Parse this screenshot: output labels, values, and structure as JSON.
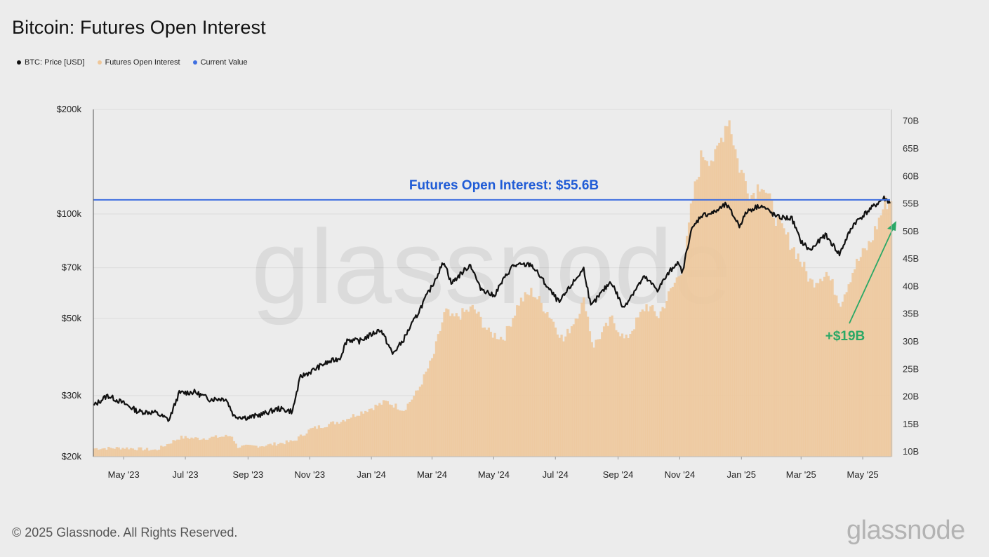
{
  "title": "Bitcoin: Futures Open Interest",
  "legend": [
    {
      "label": "BTC: Price [USD]",
      "color": "#111111"
    },
    {
      "label": "Futures Open Interest",
      "color": "#efc799"
    },
    {
      "label": "Current Value",
      "color": "#3f6fe0"
    }
  ],
  "footer": "© 2025 Glassnode. All Rights Reserved.",
  "brand": "glassnode",
  "watermark": "glassnode",
  "chart_data": {
    "type": "line",
    "title": "Bitcoin: Futures Open Interest",
    "x_ticks": [
      "May '23",
      "Jul '23",
      "Sep '23",
      "Nov '23",
      "Jan '24",
      "Mar '24",
      "May '24",
      "Jul '24",
      "Sep '24",
      "Nov '24",
      "Jan '25",
      "Mar '25",
      "May '25"
    ],
    "x_range": [
      "2023-04-01",
      "2025-05-28"
    ],
    "y_left": {
      "label": "",
      "scale": "log",
      "range": [
        20000,
        200000
      ],
      "ticks": [
        20000,
        30000,
        50000,
        70000,
        100000,
        200000
      ],
      "tick_labels": [
        "$20k",
        "$30k",
        "$50k",
        "$70k",
        "$100k",
        "$200k"
      ]
    },
    "y_right": {
      "label": "",
      "scale": "linear",
      "range": [
        9,
        72
      ],
      "ticks": [
        10,
        15,
        20,
        25,
        30,
        35,
        40,
        45,
        50,
        55,
        60,
        65,
        70
      ],
      "tick_labels": [
        "10B",
        "15B",
        "20B",
        "25B",
        "30B",
        "35B",
        "40B",
        "45B",
        "50B",
        "55B",
        "60B",
        "65B",
        "70B"
      ]
    },
    "grid": true,
    "series": [
      {
        "name": "BTC: Price [USD]",
        "axis": "left",
        "color": "#111111",
        "points": [
          [
            "2023-04-01",
            28000
          ],
          [
            "2023-04-15",
            30000
          ],
          [
            "2023-05-01",
            28500
          ],
          [
            "2023-05-15",
            27000
          ],
          [
            "2023-06-01",
            26800
          ],
          [
            "2023-06-15",
            25500
          ],
          [
            "2023-06-25",
            30500
          ],
          [
            "2023-07-10",
            30700
          ],
          [
            "2023-07-25",
            29300
          ],
          [
            "2023-08-10",
            29400
          ],
          [
            "2023-08-18",
            26200
          ],
          [
            "2023-09-01",
            25900
          ],
          [
            "2023-09-15",
            26500
          ],
          [
            "2023-10-01",
            27500
          ],
          [
            "2023-10-15",
            27000
          ],
          [
            "2023-10-23",
            34000
          ],
          [
            "2023-11-01",
            35000
          ],
          [
            "2023-11-15",
            37000
          ],
          [
            "2023-12-01",
            38500
          ],
          [
            "2023-12-08",
            43500
          ],
          [
            "2023-12-20",
            43000
          ],
          [
            "2024-01-10",
            46500
          ],
          [
            "2024-01-22",
            39500
          ],
          [
            "2024-02-01",
            43000
          ],
          [
            "2024-02-15",
            51000
          ],
          [
            "2024-03-01",
            62000
          ],
          [
            "2024-03-13",
            73000
          ],
          [
            "2024-03-20",
            63000
          ],
          [
            "2024-04-08",
            71500
          ],
          [
            "2024-04-17",
            61500
          ],
          [
            "2024-05-01",
            58000
          ],
          [
            "2024-05-20",
            71000
          ],
          [
            "2024-06-07",
            71500
          ],
          [
            "2024-06-25",
            60500
          ],
          [
            "2024-07-05",
            55500
          ],
          [
            "2024-07-29",
            69500
          ],
          [
            "2024-08-05",
            54000
          ],
          [
            "2024-08-25",
            64000
          ],
          [
            "2024-09-06",
            53500
          ],
          [
            "2024-09-27",
            65800
          ],
          [
            "2024-10-10",
            60500
          ],
          [
            "2024-10-29",
            72500
          ],
          [
            "2024-11-04",
            68000
          ],
          [
            "2024-11-12",
            89000
          ],
          [
            "2024-11-22",
            99000
          ],
          [
            "2024-12-05",
            101000
          ],
          [
            "2024-12-17",
            106500
          ],
          [
            "2024-12-30",
            92500
          ],
          [
            "2025-01-07",
            102000
          ],
          [
            "2025-01-20",
            106000
          ],
          [
            "2025-02-05",
            98000
          ],
          [
            "2025-02-20",
            97000
          ],
          [
            "2025-02-28",
            84000
          ],
          [
            "2025-03-10",
            78500
          ],
          [
            "2025-03-25",
            87000
          ],
          [
            "2025-04-08",
            76500
          ],
          [
            "2025-04-22",
            93500
          ],
          [
            "2025-05-08",
            103000
          ],
          [
            "2025-05-22",
            111000
          ],
          [
            "2025-05-28",
            108000
          ]
        ]
      },
      {
        "name": "Futures Open Interest",
        "axis": "right",
        "color": "#efc799",
        "unit": "B USD",
        "points": [
          [
            "2023-04-01",
            10.5
          ],
          [
            "2023-05-01",
            10.6
          ],
          [
            "2023-06-01",
            10.2
          ],
          [
            "2023-06-25",
            12.5
          ],
          [
            "2023-07-15",
            12.3
          ],
          [
            "2023-08-15",
            12.8
          ],
          [
            "2023-08-20",
            10.8
          ],
          [
            "2023-09-15",
            11.0
          ],
          [
            "2023-10-15",
            11.8
          ],
          [
            "2023-11-01",
            14.0
          ],
          [
            "2023-12-01",
            15.5
          ],
          [
            "2023-12-20",
            17.0
          ],
          [
            "2024-01-15",
            19.0
          ],
          [
            "2024-02-01",
            17.5
          ],
          [
            "2024-02-15",
            21.0
          ],
          [
            "2024-03-01",
            27.0
          ],
          [
            "2024-03-13",
            35.5
          ],
          [
            "2024-03-20",
            34.0
          ],
          [
            "2024-04-10",
            36.0
          ],
          [
            "2024-04-25",
            31.5
          ],
          [
            "2024-05-10",
            30.5
          ],
          [
            "2024-05-25",
            37.0
          ],
          [
            "2024-06-07",
            39.0
          ],
          [
            "2024-06-25",
            34.5
          ],
          [
            "2024-07-08",
            30.0
          ],
          [
            "2024-07-29",
            37.5
          ],
          [
            "2024-08-06",
            29.0
          ],
          [
            "2024-08-25",
            34.0
          ],
          [
            "2024-09-07",
            30.0
          ],
          [
            "2024-09-28",
            36.5
          ],
          [
            "2024-10-10",
            34.5
          ],
          [
            "2024-10-30",
            42.0
          ],
          [
            "2024-11-05",
            45.0
          ],
          [
            "2024-11-12",
            55.0
          ],
          [
            "2024-11-22",
            64.0
          ],
          [
            "2024-12-05",
            63.0
          ],
          [
            "2024-12-18",
            71.0
          ],
          [
            "2024-12-28",
            62.0
          ],
          [
            "2025-01-10",
            56.5
          ],
          [
            "2025-01-20",
            59.0
          ],
          [
            "2025-02-05",
            51.5
          ],
          [
            "2025-02-25",
            45.5
          ],
          [
            "2025-03-10",
            40.5
          ],
          [
            "2025-03-25",
            42.5
          ],
          [
            "2025-04-08",
            37.0
          ],
          [
            "2025-04-22",
            43.5
          ],
          [
            "2025-05-08",
            48.0
          ],
          [
            "2025-05-22",
            55.0
          ],
          [
            "2025-05-28",
            55.6
          ]
        ]
      },
      {
        "name": "Current Value",
        "axis": "right",
        "color": "#3f6fe0",
        "value": 55.6
      }
    ],
    "annotations": [
      {
        "text": "Futures Open Interest: $55.6B",
        "color": "#1f5bd6"
      },
      {
        "text": "+$19B",
        "color": "#2aa866"
      }
    ]
  }
}
